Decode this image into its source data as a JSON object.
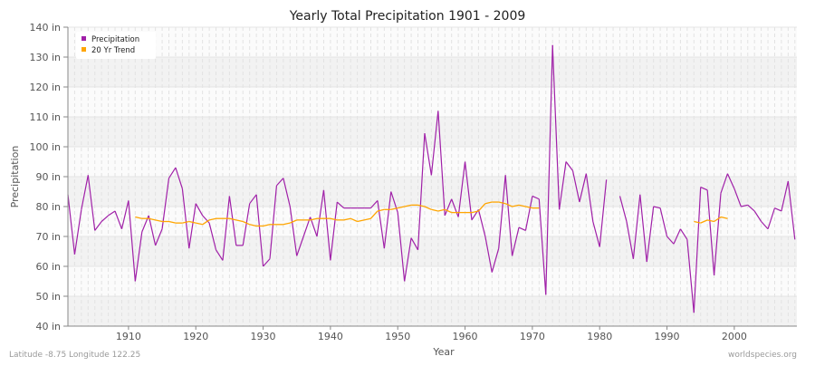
{
  "chart_data": {
    "type": "line",
    "title": "Yearly Total Precipitation 1901 - 2009",
    "xlabel": "Year",
    "ylabel": "Precipitation",
    "xlim": [
      1901,
      2009
    ],
    "ylim": [
      40,
      140
    ],
    "x_ticks": [
      1910,
      1920,
      1930,
      1940,
      1950,
      1960,
      1970,
      1980,
      1990,
      2000
    ],
    "y_ticks": [
      40,
      50,
      60,
      70,
      80,
      90,
      100,
      110,
      120,
      130,
      140
    ],
    "y_tick_labels": [
      "40 in",
      "50 in",
      "60 in",
      "70 in",
      "80 in",
      "90 in",
      "100 in",
      "110 in",
      "120 in",
      "130 in",
      "140 in"
    ],
    "grid": true,
    "legend_position": "top-left",
    "series": [
      {
        "name": "Precipitation",
        "color": "#a020a8",
        "start_year": 1901,
        "values": [
          84,
          64,
          79,
          90.5,
          72,
          75,
          77,
          78.5,
          72.5,
          82,
          55,
          71.5,
          77,
          67,
          72.5,
          89.5,
          93,
          86,
          66,
          81,
          77,
          74.5,
          65.5,
          62,
          83.5,
          67,
          67,
          81,
          84,
          60,
          62.5,
          87,
          89.5,
          80,
          63.5,
          70,
          76.5,
          70,
          85.5,
          62,
          81.5,
          79.5,
          79.5,
          79.5,
          79.5,
          79.5,
          82,
          66,
          85,
          78,
          55,
          69.5,
          65.5,
          104.5,
          90.5,
          112,
          77,
          82.5,
          76.5,
          95,
          75.5,
          79,
          70,
          58,
          66,
          90.5,
          63.5,
          73,
          72,
          83.5,
          82.5,
          50.5,
          134,
          79,
          95,
          92,
          81.5,
          91,
          75,
          66.5,
          89,
          null,
          83.5,
          75,
          62.5,
          84,
          61.5,
          80,
          79.5,
          70,
          67.5,
          72.5,
          69,
          44.5,
          86.5,
          85.5,
          57,
          84.5,
          91,
          86,
          80,
          80.5,
          78.5,
          75,
          72.5,
          79.5,
          78.5,
          88.5,
          69
        ]
      },
      {
        "name": "20 Yr Trend",
        "color": "#ffa500",
        "start_year": 1911,
        "values": [
          76.5,
          76,
          76,
          75.5,
          75,
          75,
          74.5,
          74.5,
          75,
          74.5,
          74,
          75.5,
          76,
          76,
          76,
          75.5,
          75,
          74,
          73.5,
          73.5,
          74,
          74,
          74,
          74.5,
          75.5,
          75.5,
          75.5,
          76,
          76,
          76,
          75.5,
          75.5,
          76,
          75,
          75.5,
          76,
          78.5,
          79,
          79,
          79.5,
          80,
          80.5,
          80.5,
          80,
          79,
          78.5,
          79,
          78,
          78,
          78,
          78,
          78.5,
          81,
          81.5,
          81.5,
          81,
          80,
          80.5,
          80,
          79.5,
          79.5,
          null,
          null,
          null,
          null,
          null,
          null,
          null,
          null,
          null,
          null,
          null,
          null,
          null,
          null,
          null,
          null,
          null,
          null,
          null,
          null,
          null,
          null,
          75,
          74.5,
          75.5,
          75,
          76.5,
          76
        ]
      }
    ]
  },
  "footer": {
    "left": "Latitude -8.75 Longitude 122.25",
    "right": "worldspecies.org"
  }
}
